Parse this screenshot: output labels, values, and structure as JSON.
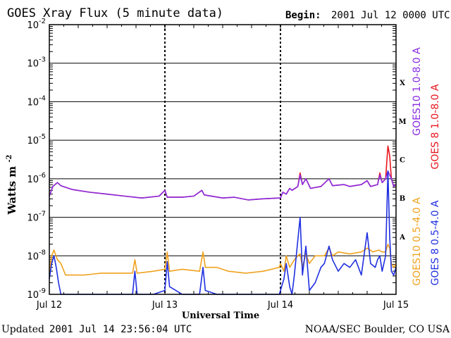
{
  "header": {
    "title": "GOES Xray Flux (5 minute data)",
    "begin_label": "Begin:",
    "begin_value": "2001 Jul 12 0000 UTC"
  },
  "footer": {
    "updated_label": "Updated",
    "updated_value": "2001 Jul 14 23:56:04 UTC",
    "credit": "NOAA/SEC Boulder, CO USA"
  },
  "chart_data": {
    "type": "line",
    "title": "GOES Xray Flux (5 minute data)",
    "xlabel": "Universal Time",
    "ylabel": "Watts m",
    "ylabel_exponent": "-2",
    "y_scale": "log",
    "ylim": [
      1e-09,
      0.01
    ],
    "xlim": [
      0,
      3
    ],
    "x_units": "days since 2001 Jul 12 00:00 UTC",
    "x_ticks": [
      {
        "x": 0,
        "label": "Jul 12"
      },
      {
        "x": 1,
        "label": "Jul 13"
      },
      {
        "x": 2,
        "label": "Jul 14"
      },
      {
        "x": 3,
        "label": "Jul 15"
      }
    ],
    "y_ticks": [
      {
        "exp": -2,
        "label_base": "10",
        "label_exp": "-2"
      },
      {
        "exp": -3,
        "label_base": "10",
        "label_exp": "-3"
      },
      {
        "exp": -4,
        "label_base": "10",
        "label_exp": "-4"
      },
      {
        "exp": -5,
        "label_base": "10",
        "label_exp": "-5"
      },
      {
        "exp": -6,
        "label_base": "10",
        "label_exp": "-6"
      },
      {
        "exp": -7,
        "label_base": "10",
        "label_exp": "-7"
      },
      {
        "exp": -8,
        "label_base": "10",
        "label_exp": "-8"
      },
      {
        "exp": -9,
        "label_base": "10",
        "label_exp": "-9"
      }
    ],
    "flare_classes": [
      {
        "label": "X",
        "exp": -3.5
      },
      {
        "label": "M",
        "exp": -4.5
      },
      {
        "label": "C",
        "exp": -5.5
      },
      {
        "label": "B",
        "exp": -6.5
      },
      {
        "label": "A",
        "exp": -7.5
      }
    ],
    "grid": true,
    "legend_position": "right, rotated",
    "series": [
      {
        "name": "GOES 8 1.0-8.0 A",
        "color": "#e8141c",
        "points": [
          [
            0,
            -6.45
          ],
          [
            0.03,
            -6.2
          ],
          [
            0.07,
            -6.1
          ],
          [
            0.1,
            -6.18
          ],
          [
            0.2,
            -6.28
          ],
          [
            0.35,
            -6.35
          ],
          [
            0.5,
            -6.4
          ],
          [
            0.65,
            -6.45
          ],
          [
            0.8,
            -6.5
          ],
          [
            0.95,
            -6.45
          ],
          [
            1.0,
            -6.3
          ],
          [
            1.02,
            -6.48
          ],
          [
            1.15,
            -6.48
          ],
          [
            1.25,
            -6.45
          ],
          [
            1.32,
            -6.3
          ],
          [
            1.34,
            -6.42
          ],
          [
            1.5,
            -6.5
          ],
          [
            1.6,
            -6.48
          ],
          [
            1.72,
            -6.55
          ],
          [
            1.85,
            -6.52
          ],
          [
            1.99,
            -6.5
          ],
          [
            2.0,
            -6.5
          ],
          [
            2.02,
            -6.35
          ],
          [
            2.05,
            -6.4
          ],
          [
            2.08,
            -6.25
          ],
          [
            2.1,
            -6.3
          ],
          [
            2.15,
            -6.2
          ],
          [
            2.17,
            -5.85
          ],
          [
            2.19,
            -6.15
          ],
          [
            2.22,
            -6.0
          ],
          [
            2.26,
            -6.25
          ],
          [
            2.35,
            -6.2
          ],
          [
            2.42,
            -6.0
          ],
          [
            2.45,
            -6.18
          ],
          [
            2.55,
            -6.15
          ],
          [
            2.6,
            -6.2
          ],
          [
            2.7,
            -6.15
          ],
          [
            2.75,
            -6.05
          ],
          [
            2.78,
            -6.2
          ],
          [
            2.84,
            -6.15
          ],
          [
            2.86,
            -5.85
          ],
          [
            2.88,
            -6.1
          ],
          [
            2.91,
            -6.0
          ],
          [
            2.93,
            -5.15
          ],
          [
            2.945,
            -5.4
          ],
          [
            2.96,
            -6.0
          ],
          [
            2.98,
            -6.2
          ],
          [
            3.0,
            -6.15
          ]
        ]
      },
      {
        "name": "GOES10 1.0-8.0 A",
        "color": "#8a2be2",
        "points": [
          [
            0,
            -6.45
          ],
          [
            0.03,
            -6.2
          ],
          [
            0.07,
            -6.1
          ],
          [
            0.1,
            -6.18
          ],
          [
            0.2,
            -6.28
          ],
          [
            0.35,
            -6.35
          ],
          [
            0.5,
            -6.4
          ],
          [
            0.65,
            -6.45
          ],
          [
            0.8,
            -6.5
          ],
          [
            0.95,
            -6.45
          ],
          [
            1.0,
            -6.3
          ],
          [
            1.02,
            -6.48
          ],
          [
            1.15,
            -6.48
          ],
          [
            1.25,
            -6.45
          ],
          [
            1.32,
            -6.3
          ],
          [
            1.34,
            -6.42
          ],
          [
            1.5,
            -6.5
          ],
          [
            1.6,
            -6.48
          ],
          [
            1.72,
            -6.55
          ],
          [
            1.85,
            -6.52
          ],
          [
            1.99,
            -6.5
          ],
          [
            2.0,
            -6.5
          ],
          [
            2.02,
            -6.35
          ],
          [
            2.05,
            -6.4
          ],
          [
            2.08,
            -6.25
          ],
          [
            2.1,
            -6.3
          ],
          [
            2.15,
            -6.2
          ],
          [
            2.17,
            -5.9
          ],
          [
            2.19,
            -6.15
          ],
          [
            2.22,
            -6.0
          ],
          [
            2.26,
            -6.25
          ],
          [
            2.35,
            -6.2
          ],
          [
            2.42,
            -6.0
          ],
          [
            2.45,
            -6.18
          ],
          [
            2.55,
            -6.15
          ],
          [
            2.6,
            -6.2
          ],
          [
            2.7,
            -6.15
          ],
          [
            2.75,
            -6.05
          ],
          [
            2.78,
            -6.2
          ],
          [
            2.84,
            -6.15
          ],
          [
            2.86,
            -5.9
          ],
          [
            2.88,
            -6.1
          ],
          [
            2.91,
            -6.0
          ],
          [
            2.93,
            -5.8
          ],
          [
            2.945,
            -5.9
          ],
          [
            2.96,
            -6.0
          ],
          [
            2.98,
            -6.2
          ],
          [
            3.0,
            -6.15
          ]
        ]
      },
      {
        "name": "GOES10 0.5-4.0 A",
        "color": "#f0a21e",
        "points": [
          [
            0,
            -8.4
          ],
          [
            0.02,
            -8.0
          ],
          [
            0.04,
            -7.85
          ],
          [
            0.07,
            -8.1
          ],
          [
            0.1,
            -8.2
          ],
          [
            0.14,
            -8.5
          ],
          [
            0.2,
            -8.5
          ],
          [
            0.3,
            -8.5
          ],
          [
            0.45,
            -8.45
          ],
          [
            0.6,
            -8.45
          ],
          [
            0.72,
            -8.45
          ],
          [
            0.74,
            -8.1
          ],
          [
            0.76,
            -8.45
          ],
          [
            0.9,
            -8.4
          ],
          [
            1.0,
            -8.35
          ],
          [
            1.02,
            -7.9
          ],
          [
            1.04,
            -8.4
          ],
          [
            1.15,
            -8.35
          ],
          [
            1.3,
            -8.4
          ],
          [
            1.33,
            -7.9
          ],
          [
            1.35,
            -8.3
          ],
          [
            1.45,
            -8.3
          ],
          [
            1.55,
            -8.4
          ],
          [
            1.7,
            -8.45
          ],
          [
            1.85,
            -8.4
          ],
          [
            1.99,
            -8.3
          ],
          [
            2.0,
            -8.2
          ],
          [
            2.03,
            -8.4
          ],
          [
            2.05,
            -8.0
          ],
          [
            2.08,
            -8.3
          ],
          [
            2.12,
            -8.1
          ],
          [
            2.15,
            -8.0
          ],
          [
            2.17,
            -7.95
          ],
          [
            2.19,
            -8.3
          ],
          [
            2.22,
            -7.95
          ],
          [
            2.25,
            -8.2
          ],
          [
            2.3,
            -8.0
          ],
          [
            2.38,
            -8.0
          ],
          [
            2.42,
            -7.8
          ],
          [
            2.45,
            -8.0
          ],
          [
            2.5,
            -7.9
          ],
          [
            2.6,
            -7.95
          ],
          [
            2.7,
            -7.9
          ],
          [
            2.75,
            -7.8
          ],
          [
            2.8,
            -7.9
          ],
          [
            2.85,
            -7.85
          ],
          [
            2.88,
            -7.9
          ],
          [
            2.91,
            -7.9
          ],
          [
            2.93,
            -7.7
          ],
          [
            2.945,
            -7.8
          ],
          [
            2.96,
            -8.2
          ],
          [
            2.98,
            -8.3
          ],
          [
            3.0,
            -8.2
          ]
        ]
      },
      {
        "name": "GOES 8 0.5-4.0 A",
        "color": "#1f2fe0",
        "points": [
          [
            0,
            -8.6
          ],
          [
            0.02,
            -8.2
          ],
          [
            0.04,
            -8.0
          ],
          [
            0.06,
            -8.3
          ],
          [
            0.08,
            -8.7
          ],
          [
            0.1,
            -9.0
          ],
          [
            0.14,
            -9.0
          ],
          [
            0.2,
            -9.0
          ],
          [
            0.3,
            -9.0
          ],
          [
            0.45,
            -9.0
          ],
          [
            0.6,
            -9.0
          ],
          [
            0.72,
            -9.0
          ],
          [
            0.74,
            -8.4
          ],
          [
            0.76,
            -9.0
          ],
          [
            0.9,
            -9.0
          ],
          [
            1.0,
            -8.9
          ],
          [
            1.02,
            -8.15
          ],
          [
            1.04,
            -8.8
          ],
          [
            1.15,
            -9.0
          ],
          [
            1.3,
            -9.0
          ],
          [
            1.33,
            -8.3
          ],
          [
            1.35,
            -8.9
          ],
          [
            1.45,
            -9.0
          ],
          [
            1.55,
            -9.0
          ],
          [
            1.7,
            -9.0
          ],
          [
            1.85,
            -9.0
          ],
          [
            1.99,
            -9.0
          ],
          [
            2.0,
            -8.9
          ],
          [
            2.03,
            -8.6
          ],
          [
            2.05,
            -8.2
          ],
          [
            2.08,
            -8.8
          ],
          [
            2.1,
            -9.0
          ],
          [
            2.12,
            -8.5
          ],
          [
            2.15,
            -7.6
          ],
          [
            2.17,
            -7.0
          ],
          [
            2.19,
            -8.5
          ],
          [
            2.22,
            -7.75
          ],
          [
            2.25,
            -8.9
          ],
          [
            2.3,
            -8.7
          ],
          [
            2.35,
            -8.3
          ],
          [
            2.38,
            -8.2
          ],
          [
            2.42,
            -7.75
          ],
          [
            2.45,
            -8.1
          ],
          [
            2.5,
            -8.4
          ],
          [
            2.55,
            -8.2
          ],
          [
            2.6,
            -8.3
          ],
          [
            2.65,
            -8.1
          ],
          [
            2.7,
            -8.5
          ],
          [
            2.75,
            -7.4
          ],
          [
            2.78,
            -8.2
          ],
          [
            2.82,
            -8.3
          ],
          [
            2.84,
            -8.1
          ],
          [
            2.86,
            -8.0
          ],
          [
            2.88,
            -8.4
          ],
          [
            2.91,
            -8.0
          ],
          [
            2.93,
            -5.8
          ],
          [
            2.945,
            -7.5
          ],
          [
            2.96,
            -8.4
          ],
          [
            2.98,
            -8.5
          ],
          [
            3.0,
            -8.3
          ]
        ]
      }
    ]
  }
}
